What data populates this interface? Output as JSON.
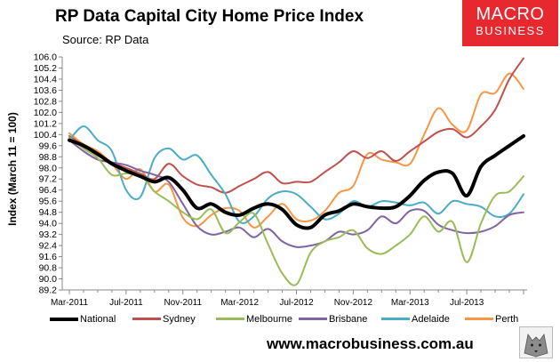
{
  "header": {
    "title": "RP Data Capital City Home Price Index",
    "source": "Source: RP Data"
  },
  "logo": {
    "line1": "MACRO",
    "line2": "BUSINESS",
    "color": "#e8282f"
  },
  "footer": {
    "website": "www.macrobusiness.com.au"
  },
  "chart_data": {
    "type": "line",
    "ylabel": "Index (March 11 = 100)",
    "xlabel": "",
    "ylim": [
      89.2,
      106.0
    ],
    "yticks": [
      89.2,
      90.0,
      90.8,
      91.6,
      92.4,
      93.2,
      94.0,
      94.8,
      95.6,
      96.4,
      97.2,
      98.0,
      98.8,
      99.6,
      100.4,
      101.2,
      102.0,
      102.8,
      103.6,
      104.4,
      105.2,
      106.0
    ],
    "xticks": [
      "Mar-2011",
      "Jul-2011",
      "Nov-2011",
      "Mar-2012",
      "Jul-2012",
      "Nov-2012",
      "Mar-2013",
      "Jul-2013"
    ],
    "x": [
      "2011-03",
      "2011-04",
      "2011-05",
      "2011-06",
      "2011-07",
      "2011-08",
      "2011-09",
      "2011-10",
      "2011-11",
      "2011-12",
      "2012-01",
      "2012-02",
      "2012-03",
      "2012-04",
      "2012-05",
      "2012-06",
      "2012-07",
      "2012-08",
      "2012-09",
      "2012-10",
      "2012-11",
      "2012-12",
      "2013-01",
      "2013-02",
      "2013-03",
      "2013-04",
      "2013-05",
      "2013-06",
      "2013-07",
      "2013-08",
      "2013-09",
      "2013-10",
      "2013-11"
    ],
    "grid": false,
    "legend_position": "bottom",
    "series": [
      {
        "name": "National",
        "color": "#000000",
        "width": 4,
        "values": [
          100.0,
          99.6,
          99.0,
          98.3,
          97.8,
          97.4,
          97.0,
          97.3,
          96.4,
          95.1,
          95.4,
          94.8,
          94.6,
          95.1,
          95.4,
          95.0,
          93.9,
          93.7,
          94.6,
          94.9,
          95.4,
          95.2,
          95.1,
          95.2,
          96.0,
          97.1,
          97.7,
          97.6,
          96.0,
          98.1,
          98.9,
          99.6,
          100.3
        ]
      },
      {
        "name": "Sydney",
        "color": "#c0504d",
        "width": 2,
        "values": [
          100.3,
          99.6,
          98.9,
          98.4,
          98.0,
          97.6,
          97.2,
          98.3,
          97.4,
          96.8,
          96.6,
          96.2,
          96.7,
          97.2,
          97.7,
          96.9,
          97.0,
          97.0,
          97.7,
          98.4,
          99.2,
          98.7,
          99.2,
          98.5,
          99.2,
          99.9,
          100.6,
          100.8,
          100.2,
          101.0,
          102.2,
          104.4,
          105.9
        ]
      },
      {
        "name": "Melbourne",
        "color": "#9bbb59",
        "width": 2,
        "values": [
          100.2,
          99.4,
          98.7,
          97.5,
          97.6,
          97.5,
          96.3,
          95.6,
          94.8,
          94.3,
          95.0,
          93.3,
          94.1,
          94.7,
          92.5,
          90.4,
          89.6,
          91.9,
          92.7,
          93.0,
          93.5,
          92.2,
          91.8,
          92.4,
          93.2,
          94.5,
          93.4,
          94.1,
          91.2,
          94.0,
          96.0,
          96.3,
          97.4
        ]
      },
      {
        "name": "Brisbane",
        "color": "#8064a2",
        "width": 2,
        "values": [
          100.0,
          99.2,
          98.6,
          98.4,
          98.2,
          97.8,
          97.5,
          97.0,
          95.4,
          93.8,
          93.2,
          93.4,
          93.7,
          93.0,
          93.6,
          92.7,
          92.3,
          92.4,
          92.7,
          93.4,
          93.2,
          93.5,
          94.5,
          94.0,
          94.9,
          94.9,
          93.9,
          93.5,
          93.3,
          93.4,
          93.8,
          94.6,
          94.8
        ]
      },
      {
        "name": "Adelaide",
        "color": "#4bacc6",
        "width": 2,
        "values": [
          100.0,
          101.0,
          100.0,
          99.2,
          96.4,
          95.9,
          98.7,
          99.4,
          98.6,
          98.9,
          97.5,
          96.1,
          94.1,
          94.5,
          95.8,
          96.3,
          96.1,
          95.2,
          94.3,
          94.7,
          95.6,
          95.2,
          95.6,
          95.5,
          95.3,
          95.5,
          94.7,
          95.6,
          95.4,
          95.2,
          94.5,
          94.7,
          96.1
        ]
      },
      {
        "name": "Perth",
        "color": "#f79646",
        "width": 2,
        "values": [
          100.5,
          99.7,
          99.2,
          98.3,
          97.2,
          97.9,
          96.3,
          96.8,
          94.4,
          93.8,
          94.6,
          95.1,
          94.9,
          93.7,
          94.5,
          95.4,
          94.3,
          94.2,
          94.9,
          96.2,
          96.7,
          99.0,
          98.6,
          98.4,
          98.3,
          100.4,
          102.3,
          101.1,
          100.7,
          103.3,
          103.4,
          104.8,
          103.7
        ]
      }
    ]
  }
}
